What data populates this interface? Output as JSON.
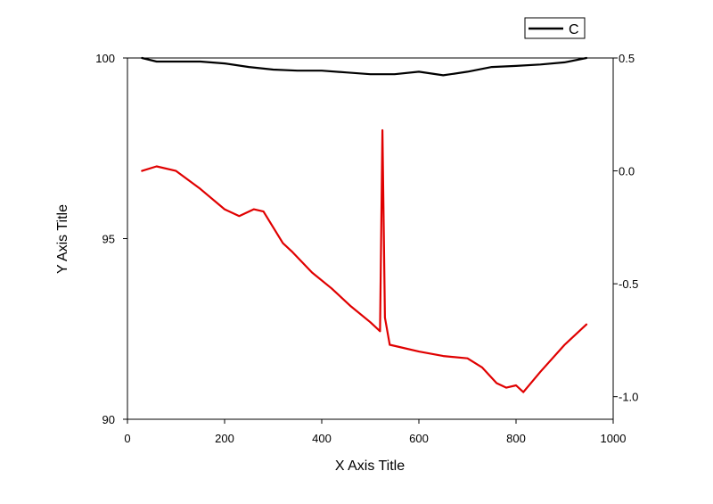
{
  "chart_data": {
    "type": "line",
    "xlabel": "X Axis Title",
    "ylabel": "Y Axis Title",
    "xlim": [
      0,
      1000
    ],
    "ylim_left": [
      90,
      100
    ],
    "ylim_right": [
      -1.1,
      0.5
    ],
    "x_ticks": [
      {
        "value": 0,
        "label": "0"
      },
      {
        "value": 200,
        "label": "200"
      },
      {
        "value": 400,
        "label": "400"
      },
      {
        "value": 600,
        "label": "600"
      },
      {
        "value": 800,
        "label": "800"
      },
      {
        "value": 1000,
        "label": "1000"
      }
    ],
    "y_left_ticks": [
      {
        "value": 90,
        "label": "90"
      },
      {
        "value": 95,
        "label": "95"
      },
      {
        "value": 100,
        "label": "100"
      }
    ],
    "y_right_ticks": [
      {
        "value": 0.5,
        "label": "0.5"
      },
      {
        "value": 0.0,
        "label": "0.0"
      },
      {
        "value": -0.5,
        "label": "-0.5"
      },
      {
        "value": -1.0,
        "label": "-1.0"
      }
    ],
    "grid": false,
    "legend_position": "top-right",
    "series": [
      {
        "name": "C",
        "axis": "left",
        "color": "#000000",
        "x": [
          30,
          60,
          100,
          150,
          200,
          250,
          300,
          350,
          400,
          450,
          500,
          550,
          600,
          650,
          700,
          750,
          800,
          850,
          900,
          945
        ],
        "y": [
          100.0,
          99.9,
          99.9,
          99.9,
          99.85,
          99.75,
          99.68,
          99.65,
          99.65,
          99.6,
          99.55,
          99.55,
          99.62,
          99.52,
          99.62,
          99.75,
          99.78,
          99.82,
          99.88,
          100.0
        ]
      },
      {
        "axis": "right",
        "color": "#e00000",
        "x": [
          30,
          60,
          100,
          150,
          200,
          230,
          260,
          280,
          300,
          320,
          340,
          380,
          420,
          460,
          500,
          520,
          525,
          530,
          540,
          560,
          600,
          650,
          700,
          730,
          760,
          780,
          800,
          815,
          850,
          900,
          945
        ],
        "y": [
          0.0,
          0.02,
          0.0,
          -0.08,
          -0.17,
          -0.2,
          -0.17,
          -0.18,
          -0.25,
          -0.32,
          -0.36,
          -0.45,
          -0.52,
          -0.6,
          -0.67,
          -0.71,
          0.18,
          -0.65,
          -0.77,
          -0.78,
          -0.8,
          -0.82,
          -0.83,
          -0.87,
          -0.94,
          -0.96,
          -0.95,
          -0.98,
          -0.89,
          -0.77,
          -0.68
        ]
      }
    ]
  }
}
